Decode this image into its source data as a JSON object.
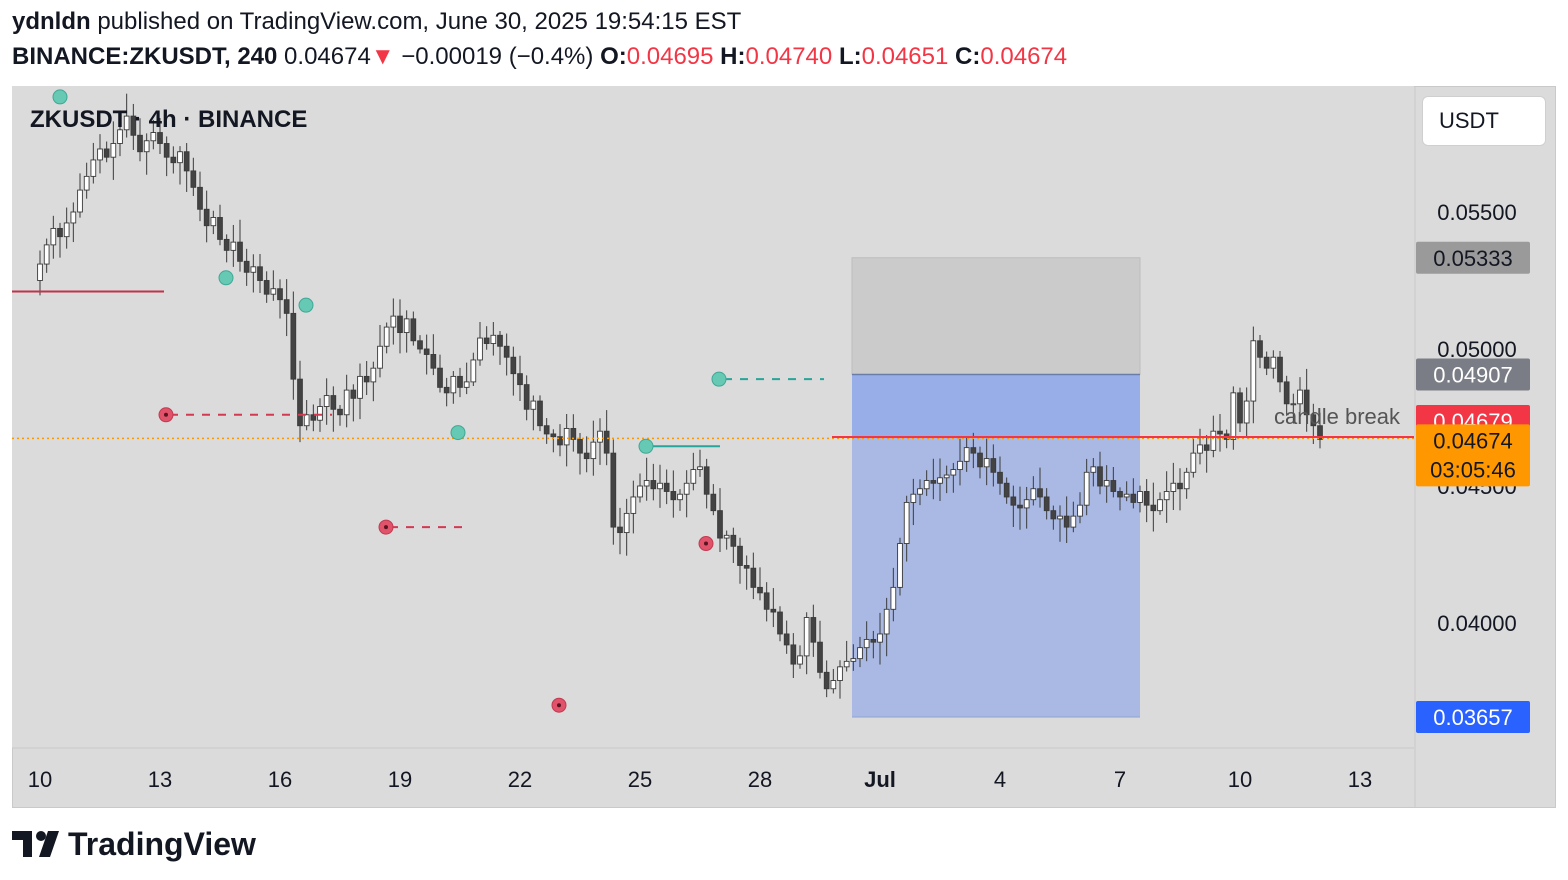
{
  "header": {
    "author": "ydnldn",
    "published_text": "published on TradingView.com, June 30, 2025 19:54:15 EST",
    "symbol": "BINANCE:ZKUSDT, 240",
    "last": "0.04674",
    "change": "−0.00019 (−0.4%)",
    "o_label": "O:",
    "o": "0.04695",
    "h_label": "H:",
    "h": "0.04740",
    "l_label": "L:",
    "l": "0.04651",
    "c_label": "C:",
    "c": "0.04674"
  },
  "legend": "ZKUSDT · 4h · BINANCE",
  "quote_currency": "USDT",
  "footer_brand": "TradingView",
  "colors": {
    "background": "#dbdbdb",
    "candle_up": "#ffffff",
    "candle_down": "#434343",
    "stop_zone": "#cbcbcb",
    "target_zone": "#aab9e3",
    "entry_zone": "#98aee8",
    "swing_high": "#66c9b3",
    "swing_low": "#e0536a",
    "red_line": "#f23645",
    "orange_line": "#ff9800",
    "badge_gray": "#9a9a9a",
    "badge_darkgray": "#7a7d85",
    "badge_red": "#f23645",
    "badge_orange": "#ff9800",
    "badge_blue": "#2962ff"
  },
  "chart_data": {
    "type": "candlestick",
    "symbol": "BINANCE:ZKUSDT",
    "interval": "4h",
    "y_axis": {
      "scale": "linear",
      "ylim": [
        0.035,
        0.0592
      ],
      "ticks": [
        "0.05500",
        "0.05000",
        "0.04500",
        "0.04000"
      ]
    },
    "x_axis": {
      "ticks": [
        "10",
        "13",
        "16",
        "19",
        "22",
        "25",
        "28",
        "Jul",
        "4",
        "7",
        "10",
        "13"
      ]
    },
    "price_badges": [
      {
        "value": "0.05333",
        "kind": "stop"
      },
      {
        "value": "0.04907",
        "kind": "entry"
      },
      {
        "value": "0.04679",
        "kind": "bid"
      },
      {
        "value": "0.04674",
        "kind": "last",
        "countdown": "03:05:46"
      },
      {
        "value": "0.03657",
        "kind": "target"
      }
    ],
    "annotations": {
      "candle_break": "candle break"
    },
    "position": {
      "entry": 0.04907,
      "stop": 0.05333,
      "target": 0.03657
    },
    "closes": [
      0.0531,
      0.0538,
      0.0544,
      0.0541,
      0.0546,
      0.055,
      0.0558,
      0.0563,
      0.0569,
      0.0573,
      0.057,
      0.0575,
      0.058,
      0.0585,
      0.0578,
      0.0572,
      0.0576,
      0.0579,
      0.0575,
      0.057,
      0.0568,
      0.0572,
      0.0565,
      0.0559,
      0.0551,
      0.0545,
      0.0548,
      0.054,
      0.0536,
      0.0539,
      0.0532,
      0.0528,
      0.053,
      0.0525,
      0.052,
      0.0522,
      0.0518,
      0.0513,
      0.0489,
      0.0472,
      0.0476,
      0.0474,
      0.0479,
      0.0483,
      0.0478,
      0.0476,
      0.0485,
      0.0482,
      0.049,
      0.0488,
      0.0493,
      0.0501,
      0.0508,
      0.0512,
      0.0506,
      0.0511,
      0.0503,
      0.05,
      0.0498,
      0.0493,
      0.0486,
      0.0484,
      0.049,
      0.0486,
      0.0488,
      0.0496,
      0.0504,
      0.0502,
      0.0505,
      0.0501,
      0.0497,
      0.0491,
      0.0487,
      0.0478,
      0.0481,
      0.0472,
      0.0469,
      0.0468,
      0.0465,
      0.0471,
      0.0467,
      0.0462,
      0.046,
      0.0466,
      0.047,
      0.0462,
      0.0435,
      0.0433,
      0.044,
      0.0446,
      0.045,
      0.0452,
      0.0449,
      0.0451,
      0.0448,
      0.0445,
      0.0447,
      0.0451,
      0.0456,
      0.0457,
      0.0447,
      0.0441,
      0.0431,
      0.0432,
      0.0428,
      0.0421,
      0.042,
      0.0413,
      0.0411,
      0.0405,
      0.0404,
      0.0396,
      0.0392,
      0.0385,
      0.0388,
      0.0402,
      0.0393,
      0.0382,
      0.0376,
      0.0379,
      0.0384,
      0.0386,
      0.0387,
      0.0391,
      0.0394,
      0.0393,
      0.0396,
      0.0405,
      0.0413,
      0.0429,
      0.0444,
      0.0447,
      0.0449,
      0.0452,
      0.0451,
      0.0453,
      0.0454,
      0.0456,
      0.0459,
      0.0464,
      0.0462,
      0.0457,
      0.046,
      0.0455,
      0.0451,
      0.0446,
      0.0443,
      0.0442,
      0.0445,
      0.0449,
      0.0446,
      0.0441,
      0.0438,
      0.0439,
      0.0435,
      0.0439,
      0.0443,
      0.0455,
      0.0457,
      0.045,
      0.0452,
      0.0448,
      0.0446,
      0.0447,
      0.0444,
      0.0448,
      0.0443,
      0.0441,
      0.0445,
      0.0448,
      0.0451,
      0.0449,
      0.0455,
      0.0462,
      0.0465,
      0.0463,
      0.047,
      0.0469,
      0.0467,
      0.0484,
      0.0473,
      0.0481,
      0.0503,
      0.0497,
      0.0493,
      0.0497,
      0.0488,
      0.048,
      0.048,
      0.0485,
      0.0476,
      0.0472,
      0.0467
    ]
  }
}
